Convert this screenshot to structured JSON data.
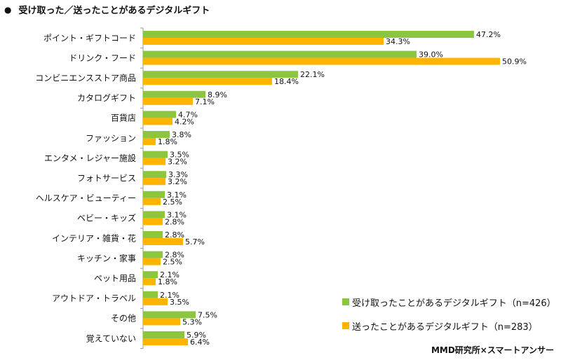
{
  "chart_data": {
    "type": "bar",
    "orientation": "horizontal",
    "title": "受け取った／送ったことがあるデジタルギフト",
    "categories": [
      "ポイント・ギフトコード",
      "ドリンク・フード",
      "コンビニエンスストア商品",
      "カタログギフト",
      "百貨店",
      "ファッション",
      "エンタメ・レジャー施設",
      "フォトサービス",
      "ヘルスケア・ビューティー",
      "ベビー・キッズ",
      "インテリア・雑貨・花",
      "キッチン・家事",
      "ペット用品",
      "アウトドア・トラベル",
      "その他",
      "覚えていない"
    ],
    "series": [
      {
        "name": "受け取ったことがあるデジタルギフト（n=426）",
        "color": "#8cc63f",
        "values": [
          47.2,
          39.0,
          22.1,
          8.9,
          4.7,
          3.8,
          3.5,
          3.3,
          3.1,
          3.1,
          2.8,
          2.8,
          2.1,
          2.1,
          7.5,
          5.9
        ],
        "labels": [
          "47.2%",
          "39.0%",
          "22.1%",
          "8.9%",
          "4.7%",
          "3.8%",
          "3.5%",
          "3.3%",
          "3.1%",
          "3.1%",
          "2.8%",
          "2.8%",
          "2.1%",
          "2.1%",
          "7.5%",
          "5.9%"
        ]
      },
      {
        "name": "送ったことがあるデジタルギフト（n=283）",
        "color": "#ffb400",
        "values": [
          34.3,
          50.9,
          18.4,
          7.1,
          4.2,
          1.8,
          3.2,
          3.2,
          2.5,
          2.8,
          5.7,
          2.5,
          1.8,
          3.5,
          5.3,
          6.4
        ],
        "labels": [
          "34.3%",
          "50.9%",
          "18.4%",
          "7.1%",
          "4.2%",
          "1.8%",
          "3.2%",
          "3.2%",
          "2.5%",
          "2.8%",
          "5.7%",
          "2.5%",
          "1.8%",
          "3.5%",
          "5.3%",
          "6.4%"
        ]
      }
    ],
    "xlim": [
      0,
      52
    ],
    "grid": false,
    "legend_position": "bottom-right"
  },
  "title": {
    "bullet": "●",
    "text": "受け取った／送ったことがあるデジタルギフト"
  },
  "credit": "MMD研究所×スマートアンサー"
}
